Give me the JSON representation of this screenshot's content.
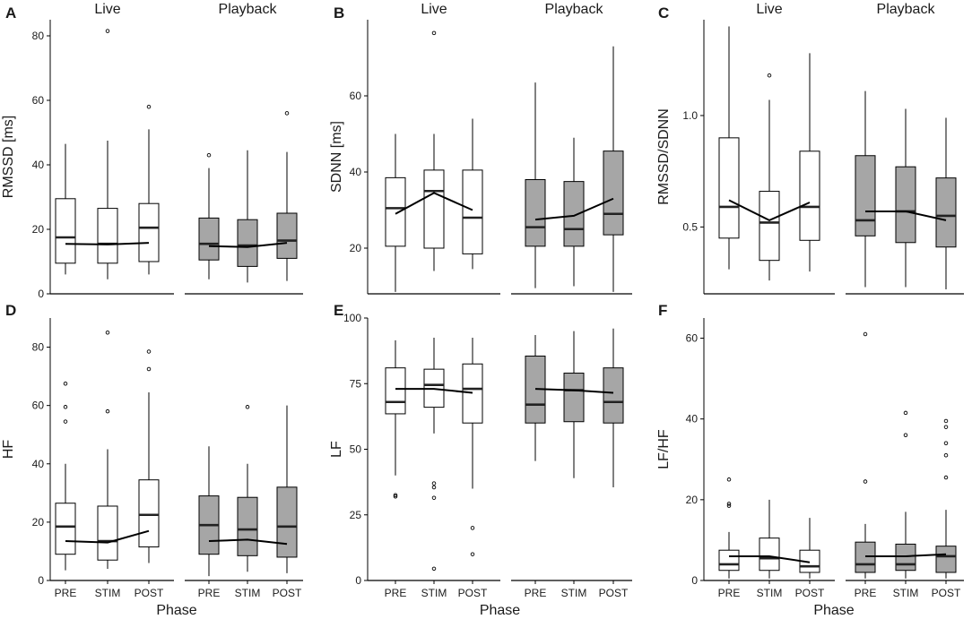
{
  "colors": {
    "live_fill": "#ffffff",
    "playback_fill": "#a6a6a6",
    "line": "#000000",
    "axis": "#000000"
  },
  "strips": {
    "live": "Live",
    "playback": "Playback"
  },
  "chart_data": [
    {
      "panel": "A",
      "type": "boxplot",
      "ylabel": "RMSSD [ms]",
      "xlabel": "",
      "ylim": [
        0,
        85
      ],
      "yticks": [
        0,
        20,
        40,
        60,
        80
      ],
      "categories": [
        "PRE",
        "STIM",
        "POST"
      ],
      "show_x_ticks": false,
      "series": [
        {
          "name": "Live",
          "fill": "white",
          "boxes": [
            {
              "lower_whisker": 6,
              "q1": 9.5,
              "median": 17.5,
              "q3": 29.5,
              "upper_whisker": 46.5,
              "outliers": []
            },
            {
              "lower_whisker": 4.5,
              "q1": 9.5,
              "median": 15.5,
              "q3": 26.5,
              "upper_whisker": 47.5,
              "outliers": [
                81.5
              ]
            },
            {
              "lower_whisker": 6,
              "q1": 10,
              "median": 20.5,
              "q3": 28,
              "upper_whisker": 51,
              "outliers": [
                58
              ]
            }
          ],
          "mean_line": [
            15.5,
            15.3,
            15.8
          ]
        },
        {
          "name": "Playback",
          "fill": "gray",
          "boxes": [
            {
              "lower_whisker": 4.5,
              "q1": 10.5,
              "median": 15.5,
              "q3": 23.5,
              "upper_whisker": 39,
              "outliers": [
                43
              ]
            },
            {
              "lower_whisker": 3.5,
              "q1": 8.5,
              "median": 15,
              "q3": 23,
              "upper_whisker": 44.5,
              "outliers": []
            },
            {
              "lower_whisker": 4,
              "q1": 11,
              "median": 16.5,
              "q3": 25,
              "upper_whisker": 44,
              "outliers": [
                56
              ]
            }
          ],
          "mean_line": [
            14.8,
            14.5,
            15.8
          ]
        }
      ]
    },
    {
      "panel": "B",
      "type": "boxplot",
      "ylabel": "SDNN [ms]",
      "xlabel": "",
      "ylim": [
        8,
        80
      ],
      "yticks": [
        20,
        40,
        60
      ],
      "categories": [
        "PRE",
        "STIM",
        "POST"
      ],
      "show_x_ticks": false,
      "series": [
        {
          "name": "Live",
          "fill": "white",
          "boxes": [
            {
              "lower_whisker": 8.5,
              "q1": 20.5,
              "median": 30.5,
              "q3": 38.5,
              "upper_whisker": 50,
              "outliers": []
            },
            {
              "lower_whisker": 14,
              "q1": 20,
              "median": 35,
              "q3": 40.5,
              "upper_whisker": 50,
              "outliers": [
                76.5
              ]
            },
            {
              "lower_whisker": 14.5,
              "q1": 18.5,
              "median": 28,
              "q3": 40.5,
              "upper_whisker": 54,
              "outliers": []
            }
          ],
          "mean_line": [
            29,
            34.5,
            30
          ]
        },
        {
          "name": "Playback",
          "fill": "gray",
          "boxes": [
            {
              "lower_whisker": 9.5,
              "q1": 20.5,
              "median": 25.5,
              "q3": 38,
              "upper_whisker": 63.5,
              "outliers": []
            },
            {
              "lower_whisker": 10,
              "q1": 20.5,
              "median": 25,
              "q3": 37.5,
              "upper_whisker": 49,
              "outliers": []
            },
            {
              "lower_whisker": 8.5,
              "q1": 23.5,
              "median": 29,
              "q3": 45.5,
              "upper_whisker": 73,
              "outliers": []
            }
          ],
          "mean_line": [
            27.5,
            28.5,
            33
          ]
        }
      ]
    },
    {
      "panel": "C",
      "type": "boxplot",
      "ylabel": "RMSSD/SDNN",
      "xlabel": "",
      "ylim": [
        0.2,
        1.43
      ],
      "yticks": [
        0.5,
        1.0
      ],
      "ytick_labels": [
        "0.5",
        "1.0"
      ],
      "categories": [
        "PRE",
        "STIM",
        "POST"
      ],
      "show_x_ticks": false,
      "series": [
        {
          "name": "Live",
          "fill": "white",
          "boxes": [
            {
              "lower_whisker": 0.31,
              "q1": 0.45,
              "median": 0.59,
              "q3": 0.9,
              "upper_whisker": 1.4,
              "outliers": []
            },
            {
              "lower_whisker": 0.26,
              "q1": 0.35,
              "median": 0.52,
              "q3": 0.66,
              "upper_whisker": 1.07,
              "outliers": [
                1.18
              ]
            },
            {
              "lower_whisker": 0.3,
              "q1": 0.44,
              "median": 0.59,
              "q3": 0.84,
              "upper_whisker": 1.28,
              "outliers": []
            }
          ],
          "mean_line": [
            0.62,
            0.53,
            0.61
          ]
        },
        {
          "name": "Playback",
          "fill": "gray",
          "boxes": [
            {
              "lower_whisker": 0.23,
              "q1": 0.46,
              "median": 0.53,
              "q3": 0.82,
              "upper_whisker": 1.11,
              "outliers": []
            },
            {
              "lower_whisker": 0.23,
              "q1": 0.43,
              "median": 0.57,
              "q3": 0.77,
              "upper_whisker": 1.03,
              "outliers": []
            },
            {
              "lower_whisker": 0.22,
              "q1": 0.41,
              "median": 0.55,
              "q3": 0.72,
              "upper_whisker": 0.99,
              "outliers": []
            }
          ],
          "mean_line": [
            0.57,
            0.57,
            0.53
          ]
        }
      ]
    },
    {
      "panel": "D",
      "type": "boxplot",
      "ylabel": "HF",
      "xlabel": "Phase",
      "ylim": [
        0,
        90
      ],
      "yticks": [
        0,
        20,
        40,
        60,
        80
      ],
      "categories": [
        "PRE",
        "STIM",
        "POST"
      ],
      "show_x_ticks": true,
      "series": [
        {
          "name": "Live",
          "fill": "white",
          "boxes": [
            {
              "lower_whisker": 3.5,
              "q1": 9,
              "median": 18.5,
              "q3": 26.5,
              "upper_whisker": 40,
              "outliers": [
                54.5,
                59.5,
                67.5
              ]
            },
            {
              "lower_whisker": 4,
              "q1": 7,
              "median": 13.5,
              "q3": 25.5,
              "upper_whisker": 45,
              "outliers": [
                58,
                85
              ]
            },
            {
              "lower_whisker": 6,
              "q1": 11.5,
              "median": 22.5,
              "q3": 34.5,
              "upper_whisker": 64.5,
              "outliers": [
                72.5,
                78.5
              ]
            }
          ],
          "mean_line": [
            13.5,
            13,
            17
          ]
        },
        {
          "name": "Playback",
          "fill": "gray",
          "boxes": [
            {
              "lower_whisker": 1.5,
              "q1": 9,
              "median": 19,
              "q3": 29,
              "upper_whisker": 46,
              "outliers": []
            },
            {
              "lower_whisker": 3,
              "q1": 8.5,
              "median": 17.5,
              "q3": 28.5,
              "upper_whisker": 40,
              "outliers": [
                59.5
              ]
            },
            {
              "lower_whisker": 2.5,
              "q1": 8,
              "median": 18.5,
              "q3": 32,
              "upper_whisker": 60,
              "outliers": []
            }
          ],
          "mean_line": [
            13.5,
            14,
            12.5
          ]
        }
      ]
    },
    {
      "panel": "E",
      "type": "boxplot",
      "ylabel": "LF",
      "xlabel": "Phase",
      "ylim": [
        0,
        100
      ],
      "yticks": [
        0,
        25,
        50,
        75,
        100
      ],
      "categories": [
        "PRE",
        "STIM",
        "POST"
      ],
      "show_x_ticks": true,
      "series": [
        {
          "name": "Live",
          "fill": "white",
          "boxes": [
            {
              "lower_whisker": 40,
              "q1": 63.5,
              "median": 68,
              "q3": 81,
              "upper_whisker": 91.5,
              "outliers": [
                32,
                32.5
              ]
            },
            {
              "lower_whisker": 56,
              "q1": 66,
              "median": 74.5,
              "q3": 80.5,
              "upper_whisker": 92.5,
              "outliers": [
                4.5,
                31.5,
                35.5,
                37
              ]
            },
            {
              "lower_whisker": 35,
              "q1": 60,
              "median": 73,
              "q3": 82.5,
              "upper_whisker": 92.5,
              "outliers": [
                10,
                20
              ]
            }
          ],
          "mean_line": [
            73,
            73,
            71.5
          ]
        },
        {
          "name": "Playback",
          "fill": "gray",
          "boxes": [
            {
              "lower_whisker": 45.5,
              "q1": 60,
              "median": 67,
              "q3": 85.5,
              "upper_whisker": 93.5,
              "outliers": []
            },
            {
              "lower_whisker": 39,
              "q1": 60.5,
              "median": 72.5,
              "q3": 79,
              "upper_whisker": 95,
              "outliers": []
            },
            {
              "lower_whisker": 35.5,
              "q1": 60,
              "median": 68,
              "q3": 81,
              "upper_whisker": 96,
              "outliers": []
            }
          ],
          "mean_line": [
            73,
            72.5,
            71.5
          ]
        }
      ]
    },
    {
      "panel": "F",
      "type": "boxplot",
      "ylabel": "LF/HF",
      "xlabel": "Phase",
      "ylim": [
        0,
        65
      ],
      "yticks": [
        0,
        20,
        40,
        60
      ],
      "categories": [
        "PRE",
        "STIM",
        "POST"
      ],
      "show_x_ticks": true,
      "series": [
        {
          "name": "Live",
          "fill": "white",
          "boxes": [
            {
              "lower_whisker": 0.5,
              "q1": 2.5,
              "median": 4,
              "q3": 7.5,
              "upper_whisker": 12,
              "outliers": [
                18.5,
                19,
                25
              ]
            },
            {
              "lower_whisker": 0.5,
              "q1": 2.5,
              "median": 5.5,
              "q3": 10.5,
              "upper_whisker": 20,
              "outliers": []
            },
            {
              "lower_whisker": 0.5,
              "q1": 2,
              "median": 3.5,
              "q3": 7.5,
              "upper_whisker": 15.5,
              "outliers": []
            }
          ],
          "mean_line": [
            6,
            6,
            4.5
          ]
        },
        {
          "name": "Playback",
          "fill": "gray",
          "boxes": [
            {
              "lower_whisker": 0.5,
              "q1": 2,
              "median": 4,
              "q3": 9.5,
              "upper_whisker": 14,
              "outliers": [
                24.5,
                61
              ]
            },
            {
              "lower_whisker": 0.5,
              "q1": 2.5,
              "median": 4,
              "q3": 9,
              "upper_whisker": 17,
              "outliers": [
                36,
                41.5
              ]
            },
            {
              "lower_whisker": 0.5,
              "q1": 2,
              "median": 6,
              "q3": 8.5,
              "upper_whisker": 17.5,
              "outliers": [
                25.5,
                31,
                34,
                38,
                39.5
              ]
            }
          ],
          "mean_line": [
            6,
            6,
            6.5
          ]
        }
      ]
    }
  ]
}
